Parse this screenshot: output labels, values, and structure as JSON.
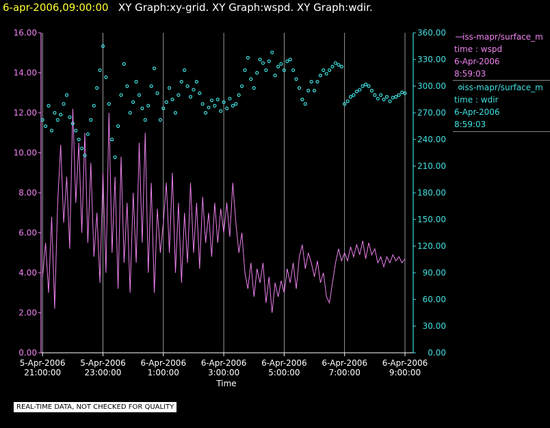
{
  "title": {
    "time": "6-apr-2006,09:00:00",
    "rest": "XY Graph:xy-grid.  XY Graph:wspd.  XY Graph:wdir."
  },
  "colors": {
    "wspd": "#ee82ee",
    "wdir": "#40e0e0",
    "grid": "#ffffff",
    "title_time": "#ffff33"
  },
  "legend": [
    {
      "marker": "line",
      "name": "iss-mapr/surface_m",
      "line2": "time : wspd",
      "line3": "6-Apr-2006",
      "line4": "8:59:03"
    },
    {
      "marker": "circle",
      "name": "iss-mapr/surface_m",
      "line2": "time : wdir",
      "line3": "6-Apr-2006",
      "line4": "8:59:03"
    }
  ],
  "notice": "REAL-TIME DATA, NOT CHECKED FOR QUALITY",
  "chart_data": {
    "type": "line",
    "xlabel": "Time",
    "x_ticks": [
      {
        "t": 21.0,
        "l1": "5-Apr-2006",
        "l2": "21:00:00"
      },
      {
        "t": 23.0,
        "l1": "5-Apr-2006",
        "l2": "23:00:00"
      },
      {
        "t": 25.0,
        "l1": "6-Apr-2006",
        "l2": "1:00:00"
      },
      {
        "t": 27.0,
        "l1": "6-Apr-2006",
        "l2": "3:00:00"
      },
      {
        "t": 29.0,
        "l1": "6-Apr-2006",
        "l2": "5:00:00"
      },
      {
        "t": 31.0,
        "l1": "6-Apr-2006",
        "l2": "7:00:00"
      },
      {
        "t": 33.0,
        "l1": "6-Apr-2006",
        "l2": "9:00:00"
      }
    ],
    "xlim": [
      20.95,
      33.0
    ],
    "left_axis": {
      "ticks": [
        "0.00",
        "2.00",
        "4.00",
        "6.00",
        "8.00",
        "10.00",
        "12.00",
        "14.00",
        "16.00"
      ],
      "ylim": [
        0,
        16
      ]
    },
    "right_axis": {
      "ticks": [
        "0.00",
        "30.00",
        "60.00",
        "90.00",
        "120.00",
        "150.00",
        "180.00",
        "210.00",
        "240.00",
        "270.00",
        "300.00",
        "330.00",
        "360.00"
      ],
      "ylim": [
        0,
        360
      ]
    },
    "grid": "vertical",
    "series": [
      {
        "name": "wspd",
        "axis": "left",
        "points": [
          [
            21.0,
            3.8
          ],
          [
            21.1,
            5.5
          ],
          [
            21.2,
            3.0
          ],
          [
            21.3,
            6.8
          ],
          [
            21.4,
            2.2
          ],
          [
            21.5,
            7.5
          ],
          [
            21.6,
            10.4
          ],
          [
            21.7,
            6.5
          ],
          [
            21.8,
            8.8
          ],
          [
            21.9,
            5.2
          ],
          [
            22.0,
            12.2
          ],
          [
            22.1,
            7.5
          ],
          [
            22.2,
            10.5
          ],
          [
            22.3,
            6.0
          ],
          [
            22.4,
            11.0
          ],
          [
            22.5,
            5.5
          ],
          [
            22.6,
            9.5
          ],
          [
            22.7,
            4.8
          ],
          [
            22.8,
            7.0
          ],
          [
            22.9,
            3.5
          ],
          [
            23.0,
            9.0
          ],
          [
            23.1,
            4.0
          ],
          [
            23.2,
            12.0
          ],
          [
            23.3,
            5.0
          ],
          [
            23.4,
            8.8
          ],
          [
            23.5,
            3.2
          ],
          [
            23.6,
            9.8
          ],
          [
            23.7,
            4.5
          ],
          [
            23.8,
            7.5
          ],
          [
            23.9,
            3.0
          ],
          [
            24.0,
            8.0
          ],
          [
            24.1,
            4.5
          ],
          [
            24.2,
            10.5
          ],
          [
            24.3,
            5.5
          ],
          [
            24.4,
            11.0
          ],
          [
            24.5,
            4.0
          ],
          [
            24.6,
            8.5
          ],
          [
            24.7,
            3.0
          ],
          [
            24.8,
            7.2
          ],
          [
            24.9,
            5.0
          ],
          [
            25.0,
            6.5
          ],
          [
            25.1,
            8.5
          ],
          [
            25.2,
            5.0
          ],
          [
            25.3,
            9.0
          ],
          [
            25.4,
            4.0
          ],
          [
            25.5,
            7.5
          ],
          [
            25.6,
            3.5
          ],
          [
            25.7,
            7.0
          ],
          [
            25.8,
            4.5
          ],
          [
            25.9,
            8.5
          ],
          [
            26.0,
            5.0
          ],
          [
            26.1,
            7.5
          ],
          [
            26.2,
            4.2
          ],
          [
            26.3,
            7.8
          ],
          [
            26.4,
            5.5
          ],
          [
            26.5,
            7.0
          ],
          [
            26.6,
            4.8
          ],
          [
            26.7,
            7.5
          ],
          [
            26.8,
            5.5
          ],
          [
            26.9,
            7.2
          ],
          [
            27.0,
            6.0
          ],
          [
            27.1,
            7.5
          ],
          [
            27.2,
            5.8
          ],
          [
            27.3,
            8.5
          ],
          [
            27.4,
            6.5
          ],
          [
            27.5,
            5.0
          ],
          [
            27.6,
            6.0
          ],
          [
            27.7,
            4.0
          ],
          [
            27.8,
            3.2
          ],
          [
            27.9,
            4.5
          ],
          [
            28.0,
            2.8
          ],
          [
            28.1,
            4.2
          ],
          [
            28.2,
            3.5
          ],
          [
            28.3,
            4.5
          ],
          [
            28.4,
            2.5
          ],
          [
            28.5,
            3.8
          ],
          [
            28.6,
            2.0
          ],
          [
            28.7,
            3.5
          ],
          [
            28.8,
            2.8
          ],
          [
            28.9,
            3.6
          ],
          [
            29.0,
            3.0
          ],
          [
            29.1,
            4.2
          ],
          [
            29.2,
            3.5
          ],
          [
            29.3,
            4.5
          ],
          [
            29.4,
            3.2
          ],
          [
            29.5,
            4.8
          ],
          [
            29.6,
            5.4
          ],
          [
            29.7,
            4.2
          ],
          [
            29.8,
            5.0
          ],
          [
            29.9,
            4.5
          ],
          [
            30.0,
            3.8
          ],
          [
            30.1,
            4.6
          ],
          [
            30.2,
            3.5
          ],
          [
            30.3,
            4.0
          ],
          [
            30.4,
            2.8
          ],
          [
            30.5,
            2.5
          ],
          [
            30.6,
            3.5
          ],
          [
            30.7,
            4.5
          ],
          [
            30.8,
            5.2
          ],
          [
            30.9,
            4.6
          ],
          [
            31.0,
            5.0
          ],
          [
            31.1,
            4.6
          ],
          [
            31.2,
            5.3
          ],
          [
            31.3,
            4.8
          ],
          [
            31.4,
            5.4
          ],
          [
            31.5,
            4.9
          ],
          [
            31.6,
            5.6
          ],
          [
            31.7,
            4.7
          ],
          [
            31.8,
            5.5
          ],
          [
            31.9,
            4.9
          ],
          [
            32.0,
            5.2
          ],
          [
            32.1,
            4.5
          ],
          [
            32.2,
            4.8
          ],
          [
            32.3,
            4.3
          ],
          [
            32.4,
            4.8
          ],
          [
            32.5,
            4.5
          ],
          [
            32.6,
            4.9
          ],
          [
            32.7,
            4.6
          ],
          [
            32.8,
            4.8
          ],
          [
            32.9,
            4.5
          ],
          [
            33.0,
            4.7
          ]
        ]
      },
      {
        "name": "wdir",
        "axis": "right",
        "points": [
          [
            21.0,
            262
          ],
          [
            21.1,
            255
          ],
          [
            21.2,
            278
          ],
          [
            21.3,
            250
          ],
          [
            21.4,
            270
          ],
          [
            21.5,
            262
          ],
          [
            21.6,
            268
          ],
          [
            21.7,
            280
          ],
          [
            21.8,
            290
          ],
          [
            21.9,
            265
          ],
          [
            22.0,
            258
          ],
          [
            22.1,
            250
          ],
          [
            22.2,
            240
          ],
          [
            22.3,
            230
          ],
          [
            22.4,
            222
          ],
          [
            22.5,
            246
          ],
          [
            22.6,
            262
          ],
          [
            22.7,
            278
          ],
          [
            22.8,
            298
          ],
          [
            22.9,
            318
          ],
          [
            23.0,
            345
          ],
          [
            23.1,
            310
          ],
          [
            23.2,
            280
          ],
          [
            23.3,
            240
          ],
          [
            23.4,
            220
          ],
          [
            23.5,
            255
          ],
          [
            23.6,
            290
          ],
          [
            23.7,
            325
          ],
          [
            23.8,
            300
          ],
          [
            23.9,
            270
          ],
          [
            24.0,
            282
          ],
          [
            24.1,
            305
          ],
          [
            24.2,
            290
          ],
          [
            24.3,
            275
          ],
          [
            24.4,
            262
          ],
          [
            24.5,
            278
          ],
          [
            24.6,
            300
          ],
          [
            24.7,
            320
          ],
          [
            24.8,
            292
          ],
          [
            24.9,
            262
          ],
          [
            25.0,
            275
          ],
          [
            25.1,
            282
          ],
          [
            25.2,
            298
          ],
          [
            25.3,
            285
          ],
          [
            25.4,
            270
          ],
          [
            25.5,
            290
          ],
          [
            25.6,
            305
          ],
          [
            25.7,
            318
          ],
          [
            25.8,
            300
          ],
          [
            25.9,
            288
          ],
          [
            26.0,
            296
          ],
          [
            26.1,
            305
          ],
          [
            26.2,
            292
          ],
          [
            26.3,
            280
          ],
          [
            26.4,
            270
          ],
          [
            26.5,
            276
          ],
          [
            26.6,
            284
          ],
          [
            26.7,
            278
          ],
          [
            26.8,
            285
          ],
          [
            26.9,
            272
          ],
          [
            27.0,
            282
          ],
          [
            27.1,
            275
          ],
          [
            27.2,
            286
          ],
          [
            27.3,
            278
          ],
          [
            27.4,
            280
          ],
          [
            27.5,
            290
          ],
          [
            27.6,
            300
          ],
          [
            27.7,
            318
          ],
          [
            27.8,
            332
          ],
          [
            27.9,
            308
          ],
          [
            28.0,
            298
          ],
          [
            28.1,
            315
          ],
          [
            28.2,
            330
          ],
          [
            28.3,
            326
          ],
          [
            28.4,
            318
          ],
          [
            28.5,
            328
          ],
          [
            28.6,
            338
          ],
          [
            28.7,
            312
          ],
          [
            28.8,
            322
          ],
          [
            28.9,
            325
          ],
          [
            29.0,
            318
          ],
          [
            29.1,
            328
          ],
          [
            29.2,
            330
          ],
          [
            29.3,
            318
          ],
          [
            29.4,
            308
          ],
          [
            29.5,
            298
          ],
          [
            29.6,
            285
          ],
          [
            29.7,
            280
          ],
          [
            29.8,
            295
          ],
          [
            29.9,
            305
          ],
          [
            30.0,
            295
          ],
          [
            30.1,
            305
          ],
          [
            30.2,
            312
          ],
          [
            30.3,
            318
          ],
          [
            30.4,
            314
          ],
          [
            30.5,
            318
          ],
          [
            30.6,
            322
          ],
          [
            30.7,
            326
          ],
          [
            30.8,
            324
          ],
          [
            30.9,
            322
          ],
          [
            31.0,
            280
          ],
          [
            31.1,
            283
          ],
          [
            31.2,
            288
          ],
          [
            31.3,
            290
          ],
          [
            31.4,
            294
          ],
          [
            31.5,
            296
          ],
          [
            31.6,
            300
          ],
          [
            31.7,
            302
          ],
          [
            31.8,
            300
          ],
          [
            31.9,
            295
          ],
          [
            32.0,
            290
          ],
          [
            32.1,
            286
          ],
          [
            32.2,
            290
          ],
          [
            32.3,
            285
          ],
          [
            32.4,
            288
          ],
          [
            32.5,
            283
          ],
          [
            32.6,
            287
          ],
          [
            32.7,
            288
          ],
          [
            32.8,
            290
          ],
          [
            32.9,
            293
          ],
          [
            33.0,
            292
          ]
        ]
      }
    ]
  }
}
